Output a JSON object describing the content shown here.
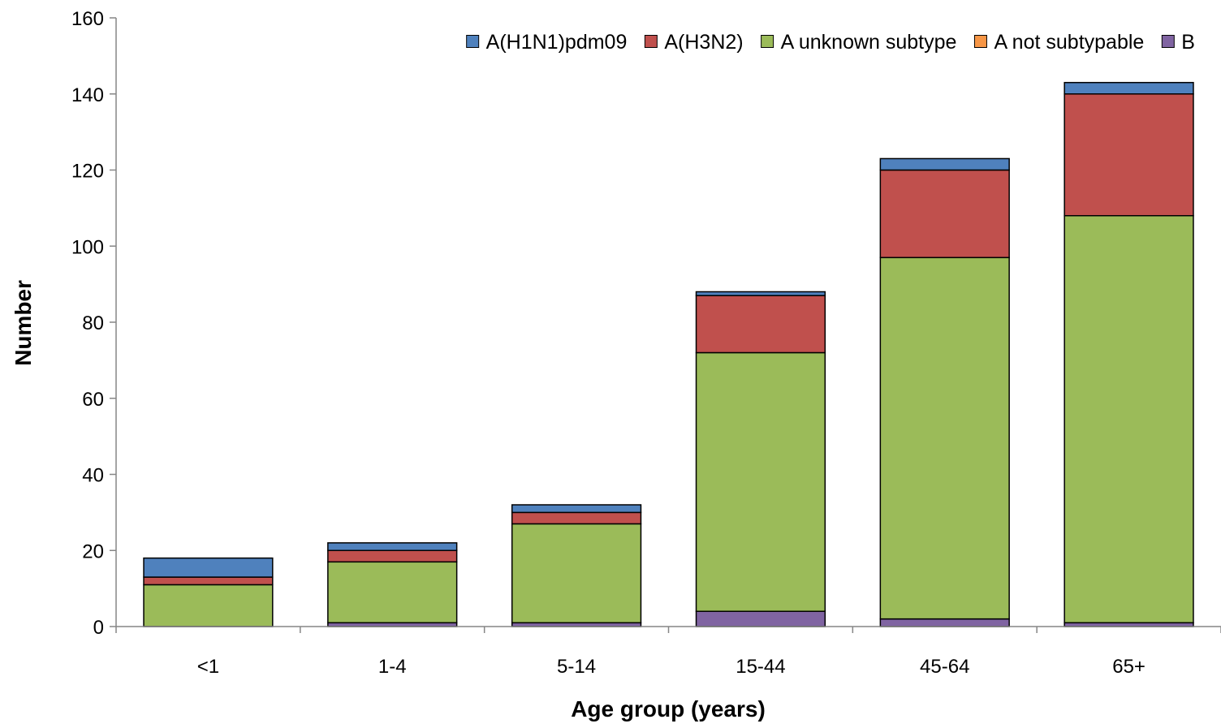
{
  "chart_data": {
    "type": "bar",
    "stacked": true,
    "title": "",
    "xlabel": "Age group (years)",
    "ylabel": "Number",
    "ylim": [
      0,
      160
    ],
    "ytick_step": 20,
    "yticks": [
      "0",
      "20",
      "40",
      "60",
      "80",
      "100",
      "120",
      "140",
      "160"
    ],
    "grid": false,
    "legend_position": "top-right",
    "categories": [
      "<1",
      "1-4",
      "5-14",
      "15-44",
      "45-64",
      "65+"
    ],
    "series": [
      {
        "name": "B",
        "color": "#8064A2",
        "values": [
          0,
          1,
          1,
          4,
          2,
          1
        ]
      },
      {
        "name": "A not subtypable",
        "color": "#F79646",
        "values": [
          0,
          0,
          0,
          0,
          0,
          0
        ]
      },
      {
        "name": "A unknown subtype",
        "color": "#9BBB59",
        "values": [
          11,
          16,
          26,
          68,
          95,
          107
        ]
      },
      {
        "name": "A(H3N2)",
        "color": "#C0504D",
        "values": [
          2,
          3,
          3,
          15,
          23,
          32
        ]
      },
      {
        "name": "A(H1N1)pdm09",
        "color": "#4F81BD",
        "values": [
          5,
          2,
          2,
          1,
          3,
          3
        ]
      }
    ],
    "legend_order": [
      "A(H1N1)pdm09",
      "A(H3N2)",
      "A unknown subtype",
      "A not subtypable",
      "B"
    ]
  }
}
